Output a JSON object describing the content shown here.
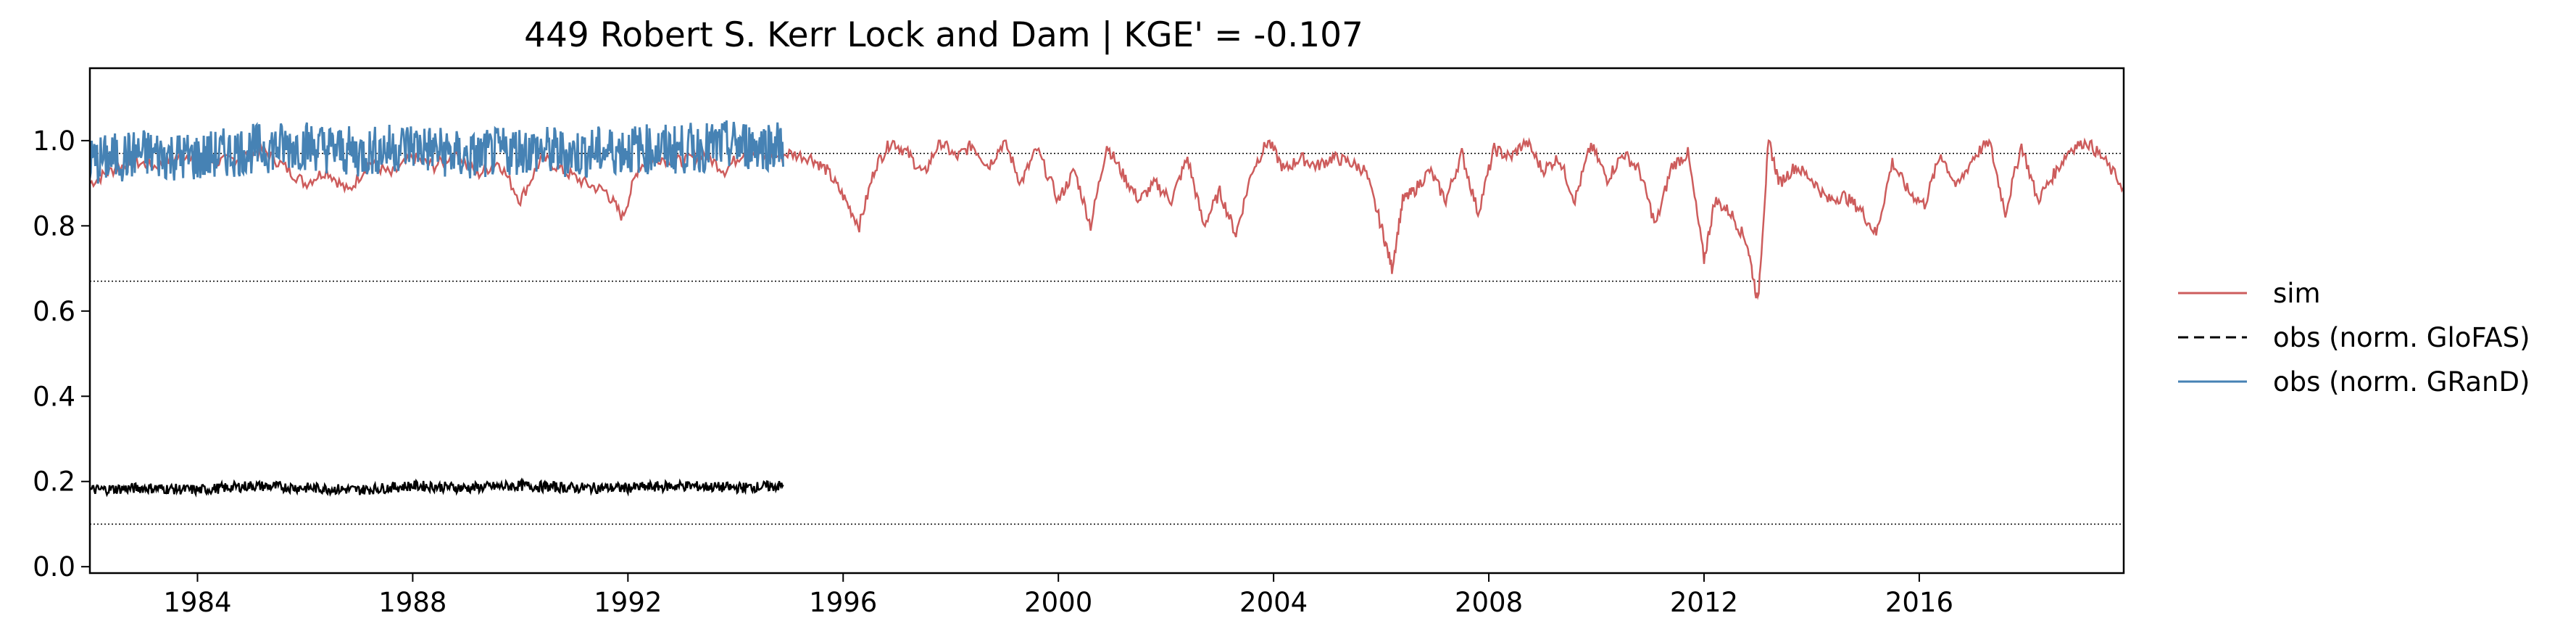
{
  "chart_data": {
    "type": "line",
    "title": "449  Robert S. Kerr Lock and Dam | KGE' = -0.107",
    "xlabel": "",
    "ylabel": "",
    "xlim": [
      1982.0,
      2019.8
    ],
    "ylim": [
      -0.015,
      1.17
    ],
    "x_ticks": [
      1984,
      1988,
      1992,
      1996,
      2000,
      2004,
      2008,
      2012,
      2016
    ],
    "y_ticks": [
      0.0,
      0.2,
      0.4,
      0.6,
      0.8,
      1.0
    ],
    "grid": false,
    "legend_position": "right",
    "reference_lines": [
      0.97,
      0.67,
      0.1
    ],
    "series": [
      {
        "name": "sim",
        "color": "#cd5c5c",
        "style": "solid",
        "x": [
          1982.0,
          1982.4,
          1982.8,
          1983.2,
          1983.6,
          1984.0,
          1984.4,
          1984.8,
          1985.2,
          1985.6,
          1986.0,
          1986.4,
          1986.8,
          1987.2,
          1987.6,
          1988.0,
          1988.4,
          1988.8,
          1989.2,
          1989.6,
          1990.0,
          1990.4,
          1990.8,
          1991.2,
          1991.6,
          1991.9,
          1992.2,
          1992.6,
          1993.0,
          1993.4,
          1993.8,
          1994.2,
          1994.6,
          1995.0,
          1995.4,
          1995.7,
          1996.0,
          1996.3,
          1996.6,
          1996.9,
          1997.2,
          1997.5,
          1997.8,
          1998.1,
          1998.4,
          1998.7,
          1999.0,
          1999.3,
          1999.6,
          2000.0,
          2000.3,
          2000.6,
          2000.9,
          2001.2,
          2001.5,
          2001.8,
          2002.1,
          2002.4,
          2002.7,
          2003.0,
          2003.3,
          2003.6,
          2003.9,
          2004.2,
          2004.5,
          2004.8,
          2005.1,
          2005.4,
          2005.7,
          2006.0,
          2006.2,
          2006.4,
          2006.6,
          2006.9,
          2007.2,
          2007.5,
          2007.8,
          2008.1,
          2008.4,
          2008.7,
          2009.0,
          2009.3,
          2009.6,
          2009.9,
          2010.2,
          2010.5,
          2010.8,
          2011.1,
          2011.4,
          2011.7,
          2012.0,
          2012.2,
          2012.5,
          2012.8,
          2013.0,
          2013.2,
          2013.4,
          2013.7,
          2014.0,
          2014.3,
          2014.6,
          2014.9,
          2015.2,
          2015.5,
          2015.8,
          2016.1,
          2016.4,
          2016.7,
          2017.0,
          2017.3,
          2017.6,
          2017.9,
          2018.2,
          2018.5,
          2018.8,
          2019.1,
          2019.4,
          2019.8
        ],
        "y": [
          0.9,
          0.93,
          0.95,
          0.94,
          0.96,
          0.97,
          0.95,
          0.96,
          0.98,
          0.94,
          0.9,
          0.93,
          0.88,
          0.95,
          0.92,
          0.96,
          0.94,
          0.97,
          0.92,
          0.95,
          0.86,
          0.96,
          0.93,
          0.9,
          0.88,
          0.82,
          0.94,
          0.96,
          0.95,
          0.97,
          0.93,
          0.98,
          0.96,
          0.97,
          0.96,
          0.93,
          0.87,
          0.8,
          0.94,
          1.0,
          0.97,
          0.92,
          1.0,
          0.96,
          0.99,
          0.94,
          1.0,
          0.9,
          0.98,
          0.86,
          0.93,
          0.8,
          0.99,
          0.92,
          0.86,
          0.9,
          0.86,
          0.96,
          0.8,
          0.88,
          0.78,
          0.93,
          1.0,
          0.93,
          0.96,
          0.94,
          0.96,
          0.95,
          0.93,
          0.8,
          0.7,
          0.86,
          0.88,
          0.93,
          0.86,
          0.97,
          0.83,
          0.98,
          0.96,
          1.0,
          0.93,
          0.96,
          0.86,
          0.99,
          0.91,
          0.97,
          0.93,
          0.8,
          0.94,
          0.97,
          0.72,
          0.86,
          0.83,
          0.76,
          0.62,
          1.0,
          0.9,
          0.94,
          0.91,
          0.86,
          0.87,
          0.84,
          0.78,
          0.95,
          0.88,
          0.85,
          0.97,
          0.89,
          0.96,
          1.0,
          0.83,
          0.99,
          0.86,
          0.92,
          0.98,
          1.0,
          0.96,
          0.89
        ]
      },
      {
        "name": "obs (norm. GloFAS)",
        "color": "#000000",
        "style": "dashed",
        "x": [
          1982.0,
          1983.0,
          1984.0,
          1985.0,
          1986.0,
          1987.0,
          1988.0,
          1989.0,
          1990.0,
          1991.0,
          1992.0,
          1993.0,
          1994.0,
          1994.9
        ],
        "y": [
          0.18,
          0.185,
          0.18,
          0.19,
          0.185,
          0.18,
          0.19,
          0.185,
          0.19,
          0.185,
          0.185,
          0.19,
          0.185,
          0.19
        ]
      },
      {
        "name": "obs (norm. GRanD)",
        "color": "#4682b4",
        "style": "solid",
        "x": [
          1982.0,
          1983.0,
          1984.0,
          1985.0,
          1986.0,
          1987.0,
          1988.0,
          1989.0,
          1990.0,
          1991.0,
          1992.0,
          1993.0,
          1994.0,
          1994.9
        ],
        "y": [
          0.95,
          0.97,
          0.96,
          0.98,
          0.99,
          0.97,
          0.99,
          0.96,
          0.98,
          0.97,
          0.98,
          0.98,
          0.99,
          0.99
        ]
      }
    ]
  }
}
